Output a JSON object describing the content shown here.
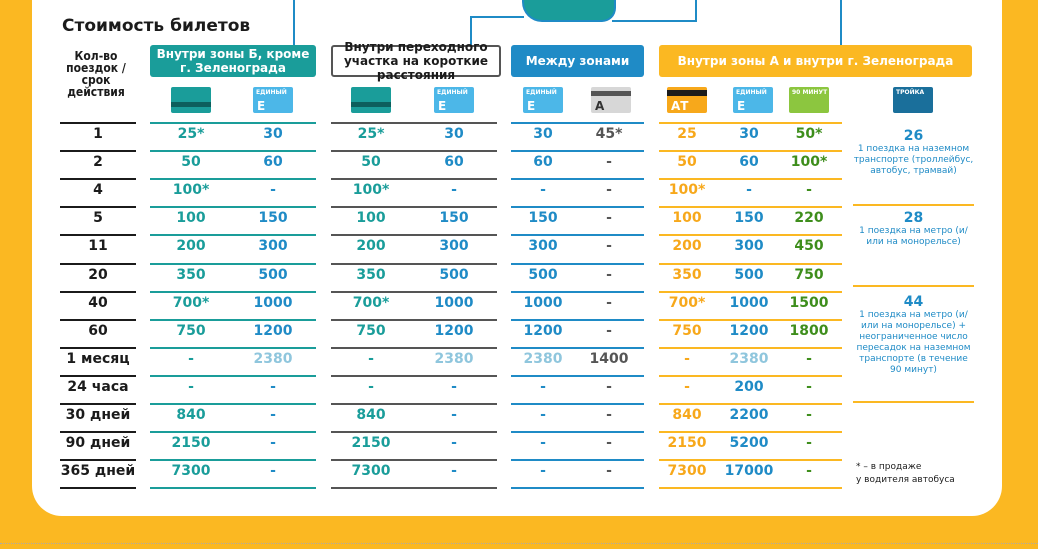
{
  "title": "Стоимость билетов",
  "row_header_label": "Кол-во поездок / срок действия",
  "groups": {
    "b": "Внутри зоны Б, кроме г. Зеленограда",
    "t": "Внутри переходного участка на короткие расстояния",
    "m": "Между зонами",
    "a": "Внутри зоны А и внутри г. Зеленограда"
  },
  "cards": [
    {
      "type": "strelka",
      "label": ""
    },
    {
      "type": "ediny",
      "label": "ЕДИНЫЙ",
      "big": "Е"
    },
    {
      "type": "strelka",
      "label": ""
    },
    {
      "type": "ediny",
      "label": "ЕДИНЫЙ",
      "big": "Е"
    },
    {
      "type": "ediny",
      "label": "ЕДИНЫЙ",
      "big": "Е"
    },
    {
      "type": "ediny-gray",
      "label": "",
      "big": "А"
    },
    {
      "type": "yellow",
      "label": "",
      "big": "АТ"
    },
    {
      "type": "ediny",
      "label": "ЕДИНЫЙ",
      "big": "Е"
    },
    {
      "type": "green",
      "label": "90 МИНУТ",
      "big": ""
    },
    {
      "type": "troika",
      "label": "ТРОЙКА",
      "big": ""
    }
  ],
  "rows": [
    {
      "head": "1",
      "cells": [
        "25*",
        "30",
        "25*",
        "30",
        "30",
        "45*",
        "25",
        "30",
        "50*"
      ]
    },
    {
      "head": "2",
      "cells": [
        "50",
        "60",
        "50",
        "60",
        "60",
        "-",
        "50",
        "60",
        "100*"
      ]
    },
    {
      "head": "4",
      "cells": [
        "100*",
        "-",
        "100*",
        "-",
        "-",
        "-",
        "100*",
        "-",
        "-"
      ]
    },
    {
      "head": "5",
      "cells": [
        "100",
        "150",
        "100",
        "150",
        "150",
        "-",
        "100",
        "150",
        "220"
      ]
    },
    {
      "head": "11",
      "cells": [
        "200",
        "300",
        "200",
        "300",
        "300",
        "-",
        "200",
        "300",
        "450"
      ]
    },
    {
      "head": "20",
      "cells": [
        "350",
        "500",
        "350",
        "500",
        "500",
        "-",
        "350",
        "500",
        "750"
      ]
    },
    {
      "head": "40",
      "cells": [
        "700*",
        "1000",
        "700*",
        "1000",
        "1000",
        "-",
        "700*",
        "1000",
        "1500"
      ]
    },
    {
      "head": "60",
      "cells": [
        "750",
        "1200",
        "750",
        "1200",
        "1200",
        "-",
        "750",
        "1200",
        "1800"
      ]
    },
    {
      "head": "1 месяц",
      "cells": [
        "-",
        "2380",
        "-",
        "2380",
        "2380",
        "1400",
        "-",
        "2380",
        "-"
      ]
    },
    {
      "head": "24 часа",
      "cells": [
        "-",
        "-",
        "-",
        "-",
        "-",
        "-",
        "-",
        "200",
        "-"
      ]
    },
    {
      "head": "30 дней",
      "cells": [
        "840",
        "-",
        "840",
        "-",
        "-",
        "-",
        "840",
        "2200",
        "-"
      ]
    },
    {
      "head": "90 дней",
      "cells": [
        "2150",
        "-",
        "2150",
        "-",
        "-",
        "-",
        "2150",
        "5200",
        "-"
      ]
    },
    {
      "head": "365 дней",
      "cells": [
        "7300",
        "-",
        "7300",
        "-",
        "-",
        "-",
        "7300",
        "17000",
        "-"
      ]
    }
  ],
  "troika_info": [
    {
      "price": "26",
      "desc": "1 поездка на наземном транспорте (троллейбус, автобус, трамвай)"
    },
    {
      "price": "28",
      "desc": "1 поездка на метро (и/или на монорельсе)"
    },
    {
      "price": "44",
      "desc": "1 поездка на метро (и/или на монорельсе) + неограниченное число пересадок на наземном транспорте (в течение 90 минут)"
    }
  ],
  "footnote_line1": "* – в продаже",
  "footnote_line2": "у водителя автобуса",
  "colors": {
    "frame": "#FBB822",
    "teal": "#1A9D9A",
    "blue": "#1F8BC6",
    "yellow": "#F7A81B",
    "green": "#3E8E1C"
  }
}
